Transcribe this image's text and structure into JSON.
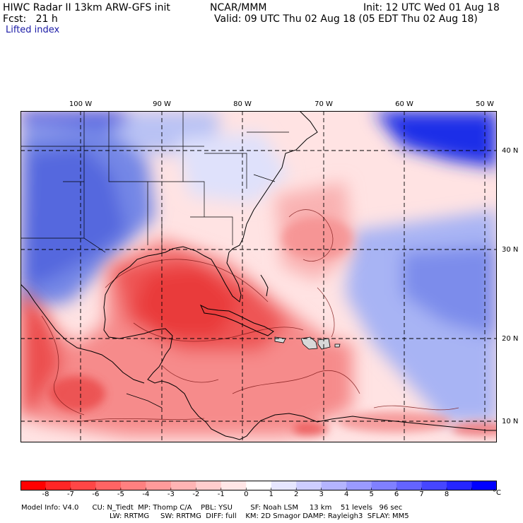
{
  "header": {
    "title": "HIWC Radar II 13km ARW-GFS init",
    "org": "NCAR/MMM",
    "init": "Init: 12 UTC Wed 01 Aug 18",
    "fcst": "Fcst:   21 h",
    "valid": "Valid: 09 UTC Thu 02 Aug 18 (05 EDT Thu 02 Aug 18)",
    "field": "Lifted index"
  },
  "map": {
    "lon_labels": [
      "100 W",
      "90 W",
      "80 W",
      "70 W",
      "60 W",
      "50 W"
    ],
    "lat_labels": [
      "40 N",
      "30 N",
      "20 N",
      "10 N"
    ],
    "colors": {
      "negative": "#e8383e",
      "positive": "#2a3ad6",
      "neutral": "#ffffff"
    }
  },
  "colorbar": {
    "ticks": [
      "-8",
      "-7",
      "-6",
      "-5",
      "-4",
      "-3",
      "-2",
      "-1",
      "0",
      "1",
      "2",
      "3",
      "4",
      "5",
      "6",
      "7",
      "8"
    ],
    "unit": "°C",
    "colors": [
      "#ff0000",
      "#ff2626",
      "#ff4646",
      "#ff6464",
      "#ff8080",
      "#ff9a9a",
      "#ffb4b4",
      "#ffcdcd",
      "#ffe6e6",
      "#ffffff",
      "#e6e6ff",
      "#cdcdff",
      "#b4b4ff",
      "#9a9aff",
      "#8080ff",
      "#6464ff",
      "#4646ff",
      "#2626ff",
      "#0000ff"
    ]
  },
  "footer": {
    "line1": "Model Info: V4.0      CU: N_Tiedt  MP: Thomp C/A    PBL: YSU        SF: Noah LSM     13 km    51 levels   96 sec",
    "line2": "LW: RRTMG     SW: RRTMG  DIFF: full    KM: 2D Smagor DAMP: Rayleigh3  SFLAY: MM5"
  }
}
